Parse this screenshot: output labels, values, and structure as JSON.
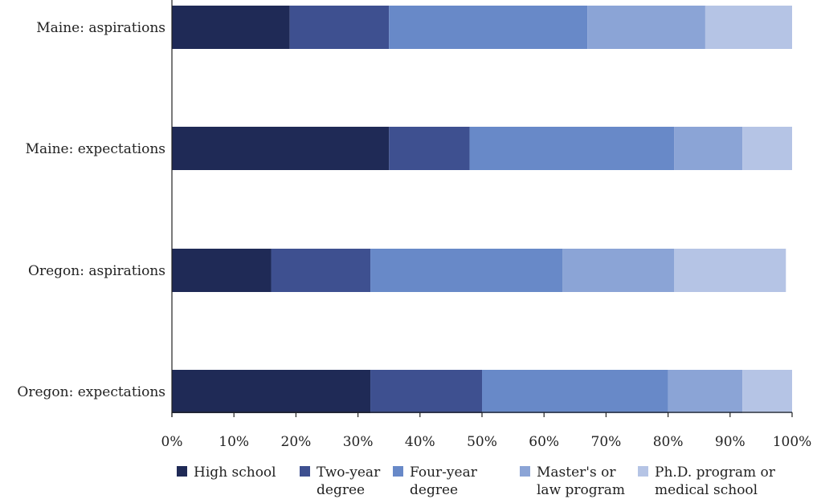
{
  "chart_data": {
    "type": "bar",
    "orientation": "horizontal",
    "stacked": true,
    "categories": [
      "Maine: aspirations",
      "Maine: expectations",
      "Oregon: aspirations",
      "Oregon: expectations"
    ],
    "series": [
      {
        "name": "High school",
        "color": "#1f2a56",
        "values": [
          19,
          35,
          16,
          32
        ]
      },
      {
        "name": "Two-year degree",
        "color": "#3e5090",
        "values": [
          16,
          13,
          16,
          18
        ]
      },
      {
        "name": "Four-year degree",
        "color": "#6889c8",
        "values": [
          32,
          33,
          31,
          30
        ]
      },
      {
        "name": "Master's or law program",
        "color": "#8ba4d6",
        "values": [
          19,
          11,
          18,
          12
        ]
      },
      {
        "name": "Ph.D. program or medical school",
        "color": "#b5c4e5",
        "values": [
          14,
          8,
          18,
          8
        ]
      }
    ],
    "xlim": [
      0,
      100
    ],
    "x_ticks": [
      "0%",
      "10%",
      "20%",
      "30%",
      "40%",
      "50%",
      "60%",
      "70%",
      "80%",
      "90%",
      "100%"
    ],
    "legend": {
      "position": "bottom",
      "labels": [
        [
          "High school"
        ],
        [
          "Two-year",
          "degree"
        ],
        [
          "Four-year",
          "degree"
        ],
        [
          "Master's or",
          "law program"
        ],
        [
          "Ph.D. program or",
          "medical school"
        ]
      ]
    },
    "grid": false
  }
}
